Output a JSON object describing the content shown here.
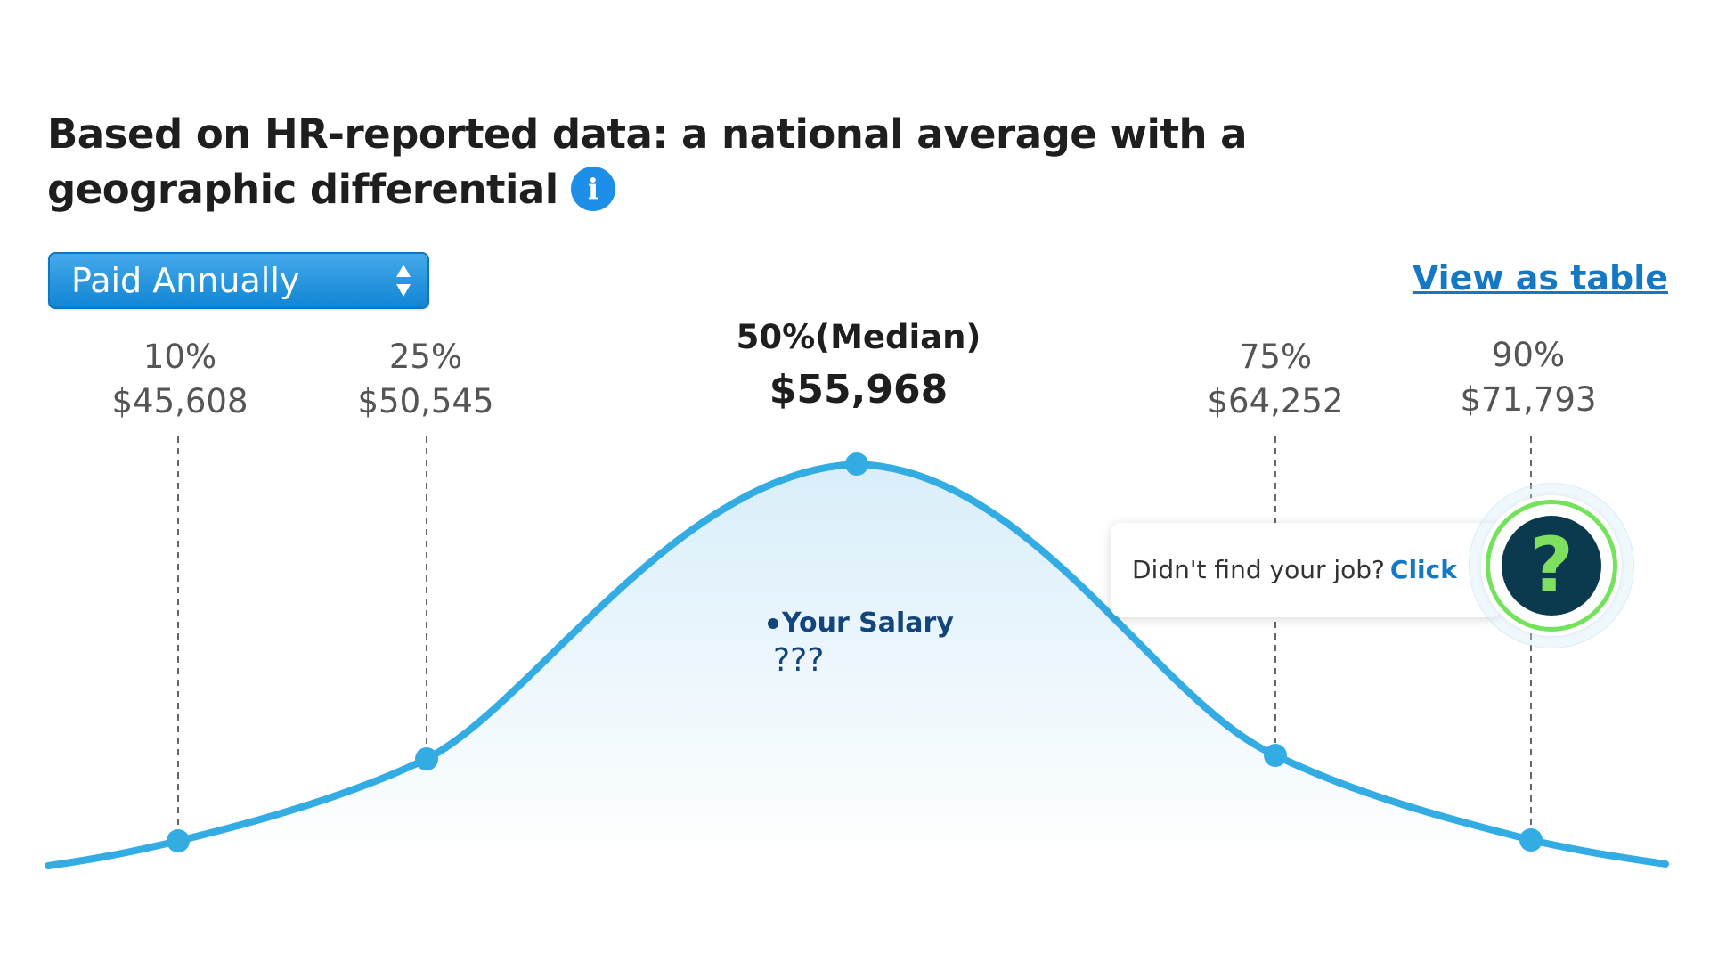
{
  "header": {
    "title": "Based on HR-reported data: a national average with a geographic differential",
    "info_icon": "info-icon"
  },
  "controls": {
    "pay_period_selected": "Paid Annually",
    "select_icon": "up-down-arrows-icon",
    "view_table_label": "View as table"
  },
  "chart_data": {
    "type": "area",
    "title": "",
    "xlabel": "",
    "ylabel": "",
    "points": [
      {
        "percentile": "10%",
        "value": "$45,608",
        "amount": 45608
      },
      {
        "percentile": "25%",
        "value": "$50,545",
        "amount": 50545
      },
      {
        "percentile": "50%(Median)",
        "value": "$55,968",
        "amount": 55968
      },
      {
        "percentile": "75%",
        "value": "$64,252",
        "amount": 64252
      },
      {
        "percentile": "90%",
        "value": "$71,793",
        "amount": 71793
      }
    ],
    "line_color": "#33ace3",
    "fill_color": "#e3f3fc"
  },
  "your_salary": {
    "label": "Your Salary",
    "value": "???"
  },
  "help": {
    "text": "Didn't find your job?",
    "link": "Click",
    "icon": "question-mark-icon",
    "icon_glyph": "?",
    "accent_color": "#72e35a",
    "icon_bg_color": "#0b3a4f"
  }
}
